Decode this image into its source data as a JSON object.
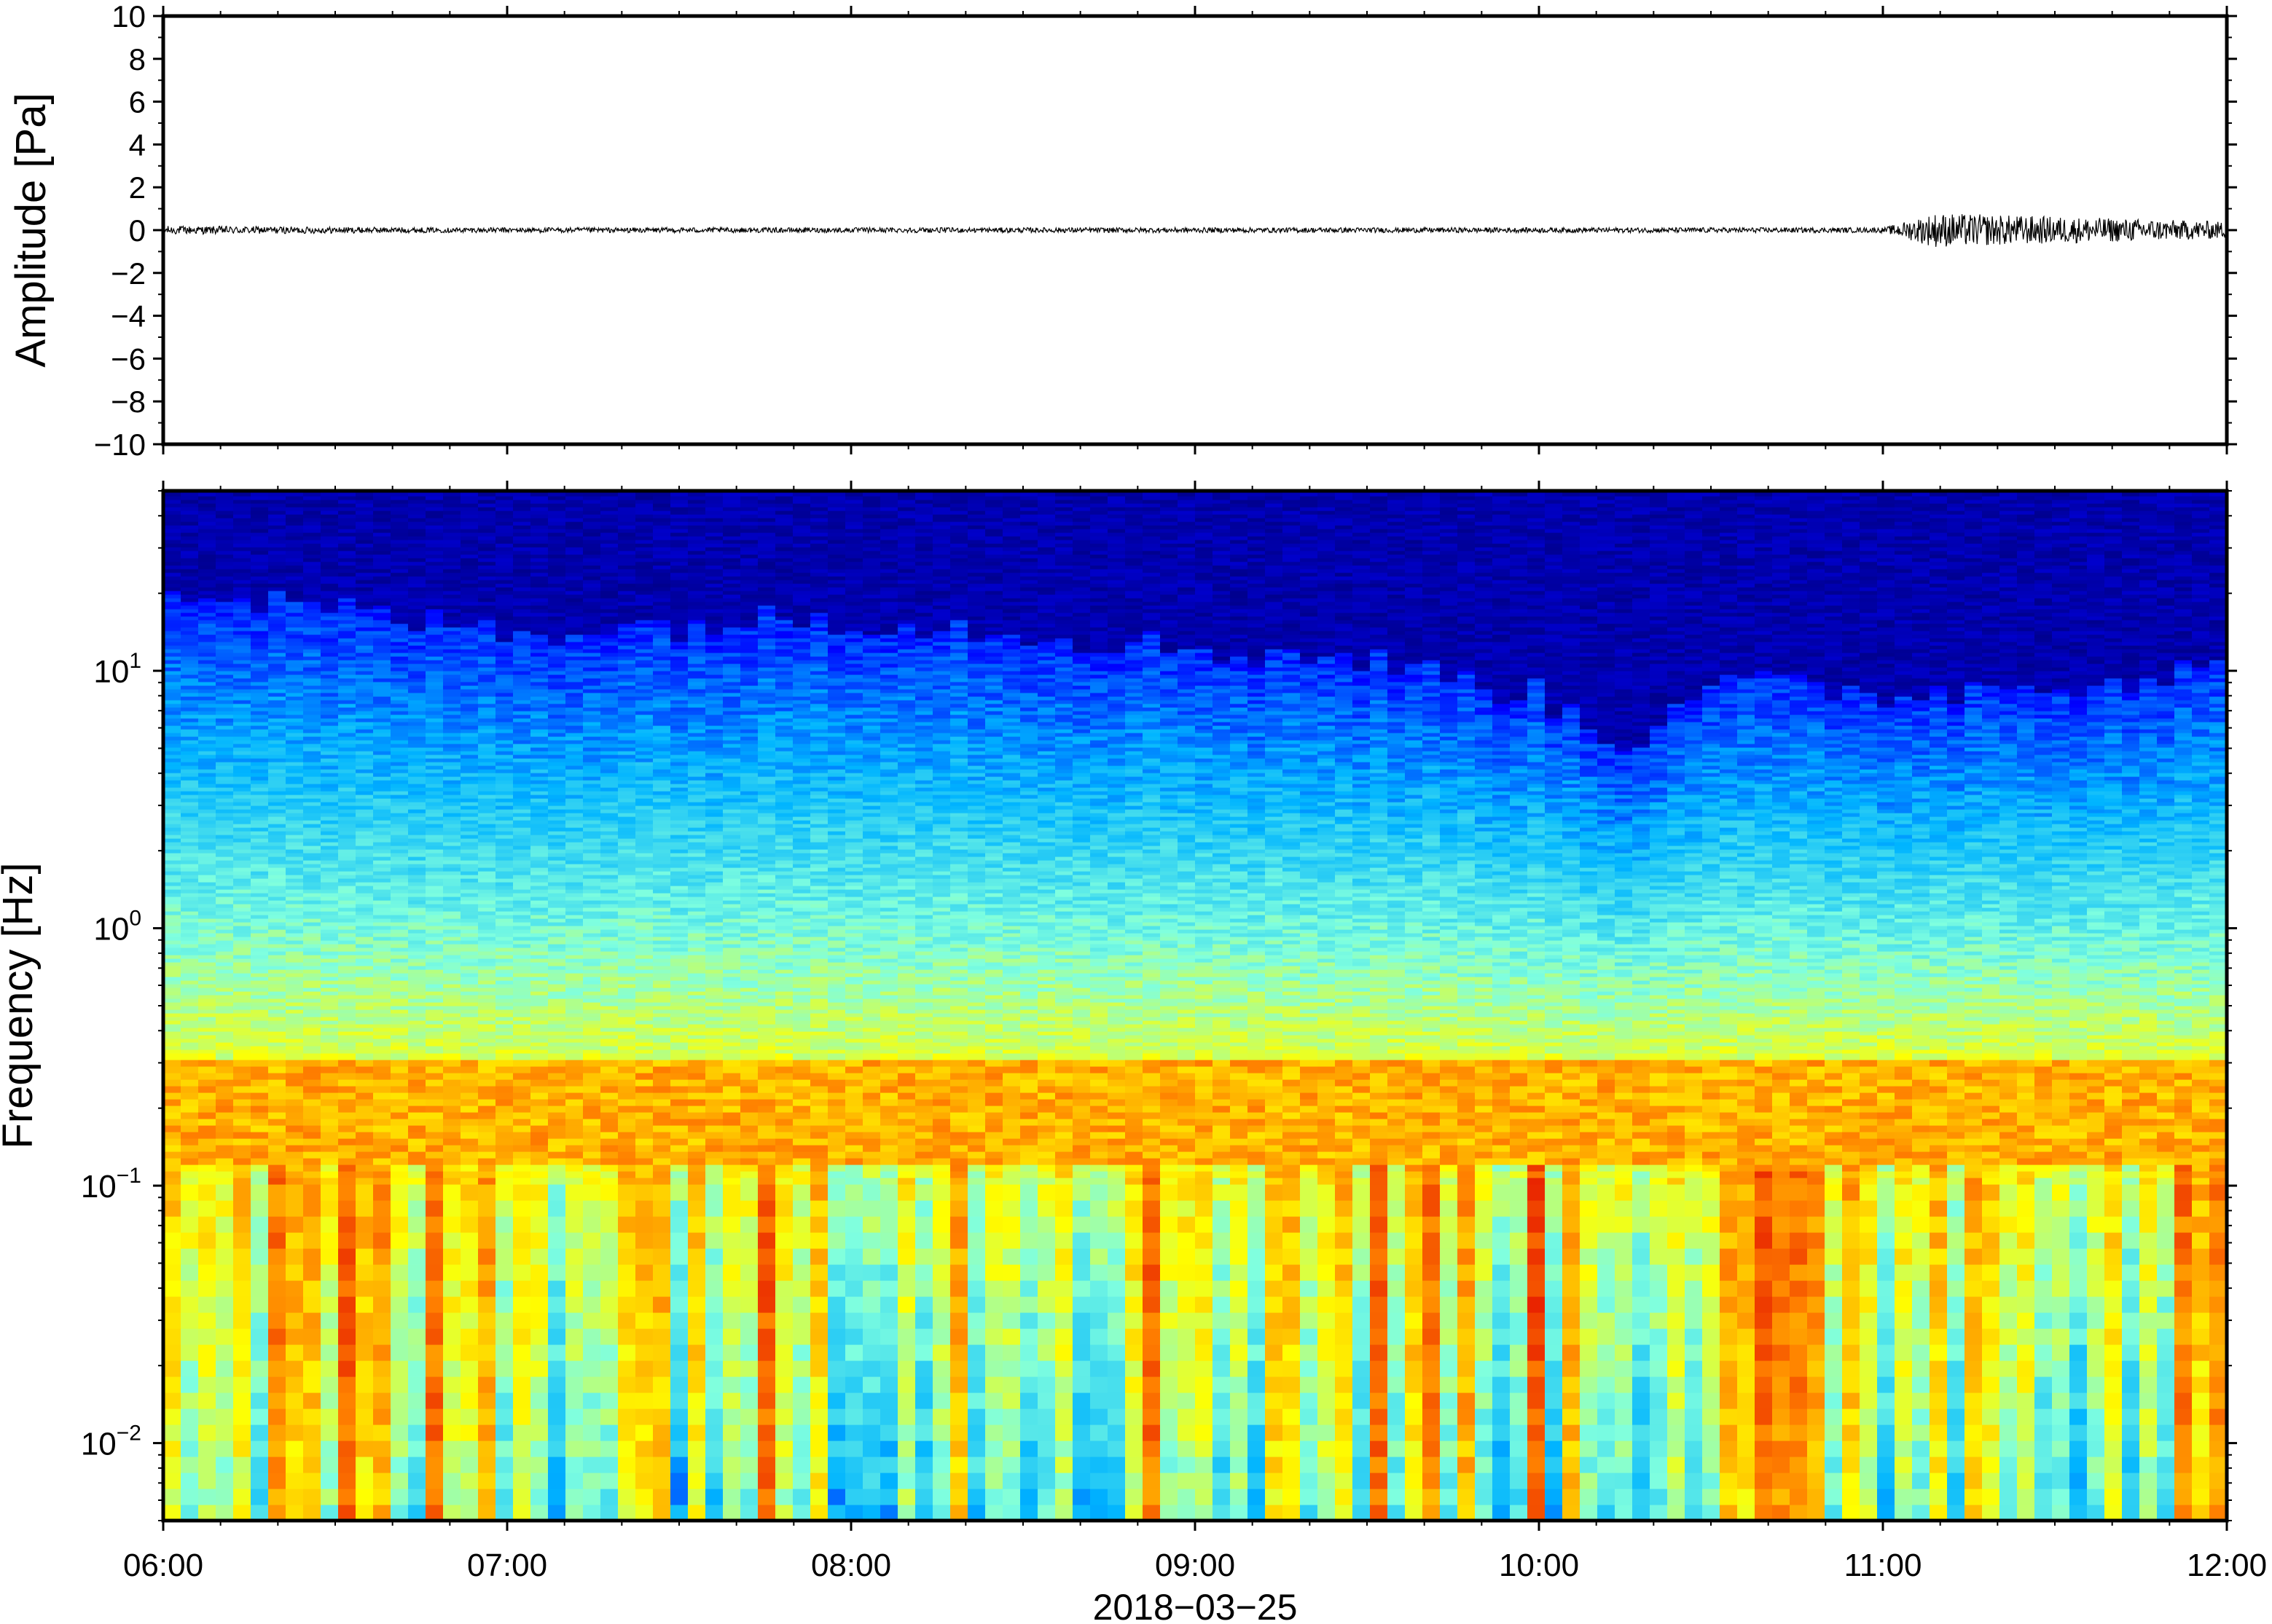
{
  "chart_data": [
    {
      "type": "line",
      "title": "",
      "ylabel": "Amplitude [Pa]",
      "ylim": [
        -10,
        10
      ],
      "yticks": [
        -10,
        -8,
        -6,
        -4,
        -2,
        0,
        2,
        4,
        6,
        8,
        10
      ],
      "ytick_labels": [
        "−10",
        "−8",
        "−6",
        "−4",
        "−2",
        "0",
        "2",
        "4",
        "6",
        "8",
        "10"
      ],
      "xlim": [
        "06:00",
        "12:00"
      ],
      "series": [
        {
          "description": "pressure trace, near zero throughout; peak excursions about ±0.7 Pa near 11:09",
          "x": [
            "06:00",
            "07:00",
            "08:00",
            "09:00",
            "10:00",
            "11:00",
            "11:09",
            "12:00"
          ],
          "values": [
            0.1,
            0.0,
            0.0,
            0.0,
            0.0,
            0.0,
            0.7,
            0.3
          ]
        }
      ],
      "color": "#000000"
    },
    {
      "type": "heatmap",
      "title": "",
      "ylabel": "Frequency [Hz]",
      "xlabel": "2018−03−25",
      "yscale": "log",
      "ylim": [
        0.005,
        50
      ],
      "yticks": [
        0.01,
        0.1,
        1,
        10
      ],
      "ytick_labels": [
        {
          "base": "10",
          "exp": "−2"
        },
        {
          "base": "10",
          "exp": "−1"
        },
        {
          "base": "10",
          "exp": "0"
        },
        {
          "base": "10",
          "exp": "1"
        }
      ],
      "xticks": [
        "06:00",
        "07:00",
        "08:00",
        "09:00",
        "10:00",
        "11:00",
        "12:00"
      ],
      "colormap": "jet",
      "colormap_stops": [
        "#00007f",
        "#0000ff",
        "#00b4ff",
        "#7fffdf",
        "#ffff00",
        "#ff7f00",
        "#e00000"
      ],
      "upper_boundary_hz": {
        "x": [
          "06:00",
          "06:30",
          "07:00",
          "07:30",
          "08:00",
          "08:30",
          "09:00",
          "09:30",
          "10:00",
          "10:15",
          "10:30",
          "11:00",
          "11:30",
          "12:00"
        ],
        "values": [
          20,
          17,
          14,
          15,
          16,
          14,
          12,
          11,
          8,
          5,
          9,
          8,
          9,
          10
        ]
      },
      "warm_band_hz": [
        0.12,
        0.3
      ]
    }
  ]
}
